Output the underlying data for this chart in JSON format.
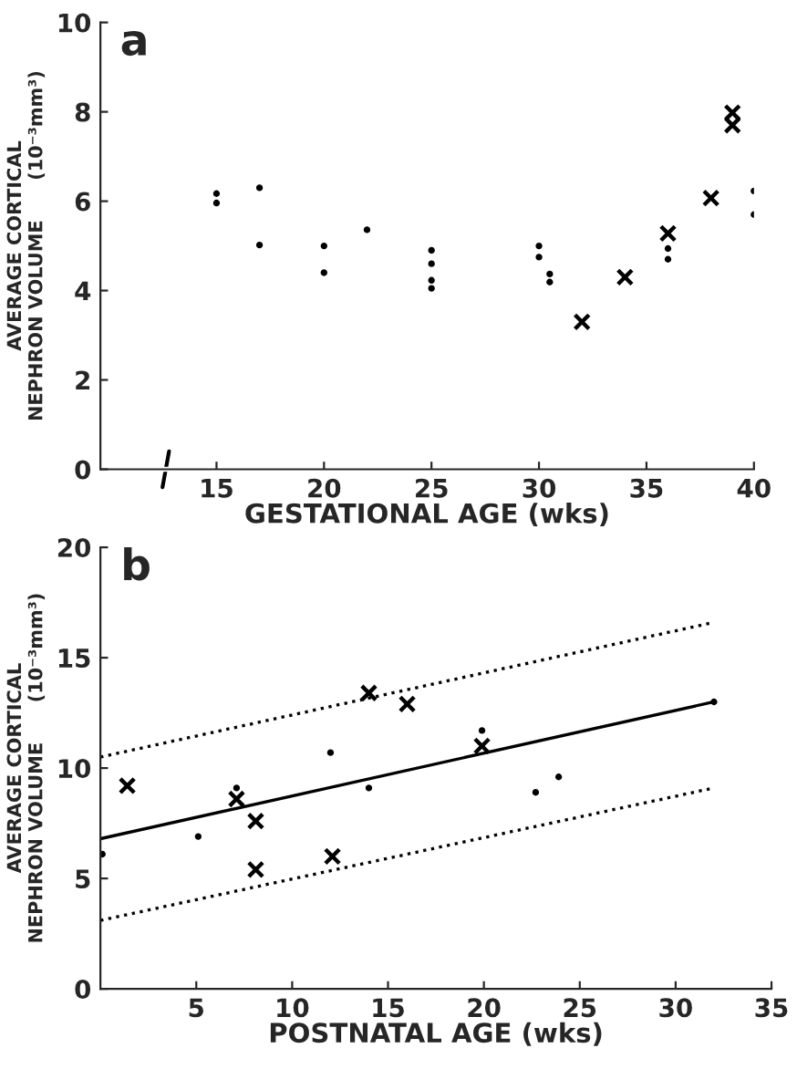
{
  "chart_data": [
    {
      "type": "scatter",
      "title": "a",
      "xlabel": "GESTATIONAL AGE (wks)",
      "ylabel": "AVERAGE CORTICAL\nNEPHRON VOLUME      (10⁻³mm³)",
      "xlim": [
        9.6,
        40
      ],
      "xticks": [
        15,
        20,
        25,
        30,
        35,
        40
      ],
      "ylim": [
        0,
        10
      ],
      "yticks": [
        0,
        2,
        4,
        6,
        8,
        10
      ],
      "grid": false,
      "legend": false,
      "series": [
        {
          "marker": "circle",
          "color": "#000000",
          "x": [
            15,
            15,
            17,
            17,
            20,
            20,
            22,
            25,
            25,
            25,
            25,
            30,
            30,
            30.5,
            30.5,
            36,
            36,
            40,
            40
          ],
          "values": [
            6.17,
            5.96,
            6.3,
            5.02,
            5.0,
            4.4,
            5.36,
            4.9,
            4.6,
            4.23,
            4.05,
            5.0,
            4.75,
            4.37,
            4.19,
            4.94,
            4.7,
            6.23,
            5.7
          ]
        },
        {
          "marker": "cross",
          "color": "#000000",
          "x": [
            32,
            34,
            36,
            38,
            39,
            39
          ],
          "values": [
            3.3,
            4.3,
            5.28,
            6.07,
            7.98,
            7.7
          ]
        }
      ]
    },
    {
      "type": "scatter",
      "title": "b",
      "xlabel": "POSTNATAL AGE (wks)",
      "ylabel": "AVERAGE CORTICAL\nNEPHRON VOLUME      (10⁻³mm³)",
      "xlim": [
        0,
        35
      ],
      "xticks": [
        5,
        10,
        15,
        20,
        25,
        30,
        35
      ],
      "ylim": [
        0,
        20
      ],
      "yticks": [
        0,
        5,
        10,
        15,
        20
      ],
      "grid": false,
      "legend": false,
      "series": [
        {
          "marker": "circle",
          "color": "#000000",
          "x": [
            0.1,
            5.1,
            7.1,
            12.0,
            14.0,
            19.9,
            22.7,
            23.9,
            32.0
          ],
          "values": [
            6.1,
            6.9,
            9.1,
            10.7,
            9.1,
            11.7,
            8.9,
            9.6,
            13.0
          ]
        },
        {
          "marker": "cross",
          "color": "#000000",
          "x": [
            1.4,
            7.1,
            8.1,
            8.1,
            12.1,
            14.0,
            16.0,
            19.9
          ],
          "values": [
            9.2,
            8.6,
            7.6,
            5.4,
            6.0,
            13.4,
            12.9,
            11.0
          ]
        },
        {
          "type": "line",
          "line_style": "solid",
          "marker": "none",
          "color": "#000000",
          "x": [
            0,
            32
          ],
          "values": [
            6.8,
            13.0
          ]
        },
        {
          "type": "line",
          "line_style": "dotted",
          "marker": "none",
          "color": "#000000",
          "x": [
            0,
            32
          ],
          "values": [
            10.5,
            16.6
          ]
        },
        {
          "type": "line",
          "line_style": "dotted",
          "marker": "none",
          "color": "#000000",
          "x": [
            0,
            32
          ],
          "values": [
            3.1,
            9.1
          ]
        }
      ]
    }
  ]
}
